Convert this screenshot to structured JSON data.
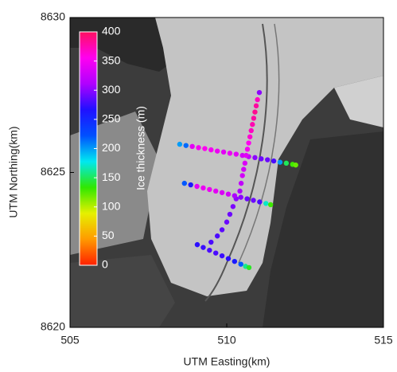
{
  "chart_data": {
    "type": "scatter",
    "xlabel": "UTM Easting(km)",
    "ylabel": "UTM Northing(km)",
    "xlim": [
      505,
      515
    ],
    "ylim": [
      8620,
      8630
    ],
    "xticks": [
      505,
      510,
      515
    ],
    "yticks": [
      8620,
      8625,
      8630
    ],
    "x": [
      508.5,
      508.7,
      508.9,
      509.1,
      509.3,
      509.5,
      509.7,
      509.9,
      510.1,
      510.3,
      510.5,
      510.7,
      510.9,
      511.1,
      511.3,
      511.5,
      511.7,
      511.9,
      512.1,
      512.2,
      511.04,
      510.98,
      510.94,
      510.9,
      510.86,
      510.82,
      510.78,
      510.74,
      510.7,
      510.66,
      510.62,
      510.58,
      510.54,
      510.5,
      510.46,
      510.42,
      510.3,
      510.2,
      510.1,
      510.0,
      509.85,
      509.7,
      509.5,
      508.65,
      508.85,
      509.05,
      509.25,
      509.45,
      509.65,
      509.85,
      510.05,
      510.25,
      510.45,
      510.65,
      510.85,
      511.05,
      511.25,
      511.4,
      509.06,
      509.25,
      509.45,
      509.65,
      509.85,
      510.05,
      510.25,
      510.45,
      510.6,
      510.71
    ],
    "y": [
      8625.91,
      8625.87,
      8625.84,
      8625.8,
      8625.77,
      8625.73,
      8625.69,
      8625.66,
      8625.62,
      8625.59,
      8625.55,
      8625.51,
      8625.48,
      8625.44,
      8625.41,
      8625.37,
      8625.33,
      8625.3,
      8625.26,
      8625.24,
      8627.58,
      8627.35,
      8627.15,
      8626.95,
      8626.75,
      8626.55,
      8626.35,
      8626.15,
      8625.95,
      8625.75,
      8625.55,
      8625.3,
      8625.1,
      8624.9,
      8624.65,
      8624.4,
      8624.15,
      8623.9,
      8623.65,
      8623.4,
      8623.15,
      8622.95,
      8622.75,
      8624.65,
      8624.6,
      8624.55,
      8624.5,
      8624.45,
      8624.4,
      8624.35,
      8624.3,
      8624.25,
      8624.2,
      8624.15,
      8624.1,
      8624.05,
      8624.0,
      8623.96,
      8622.67,
      8622.58,
      8622.49,
      8622.4,
      8622.31,
      8622.22,
      8622.13,
      8622.04,
      8621.97,
      8621.93
    ],
    "values": [
      200,
      215,
      340,
      350,
      355,
      350,
      345,
      340,
      345,
      340,
      330,
      320,
      300,
      290,
      290,
      280,
      200,
      150,
      130,
      120,
      300,
      370,
      380,
      385,
      380,
      375,
      370,
      365,
      355,
      350,
      340,
      335,
      330,
      330,
      320,
      310,
      300,
      295,
      290,
      290,
      285,
      280,
      280,
      220,
      260,
      340,
      345,
      345,
      340,
      335,
      330,
      310,
      300,
      290,
      290,
      280,
      170,
      130,
      270,
      275,
      280,
      280,
      275,
      270,
      260,
      220,
      160,
      140
    ],
    "colorbar": {
      "label": "Ice thickness (m)",
      "lim": [
        0,
        400
      ],
      "ticks": [
        0,
        50,
        100,
        150,
        200,
        250,
        300,
        350,
        400
      ],
      "colormap": [
        "#ff2000",
        "#ff9a00",
        "#e6f000",
        "#30e800",
        "#00e8f0",
        "#0050ff",
        "#2010ff",
        "#b000ff",
        "#ff00f0",
        "#ff1060"
      ]
    }
  }
}
